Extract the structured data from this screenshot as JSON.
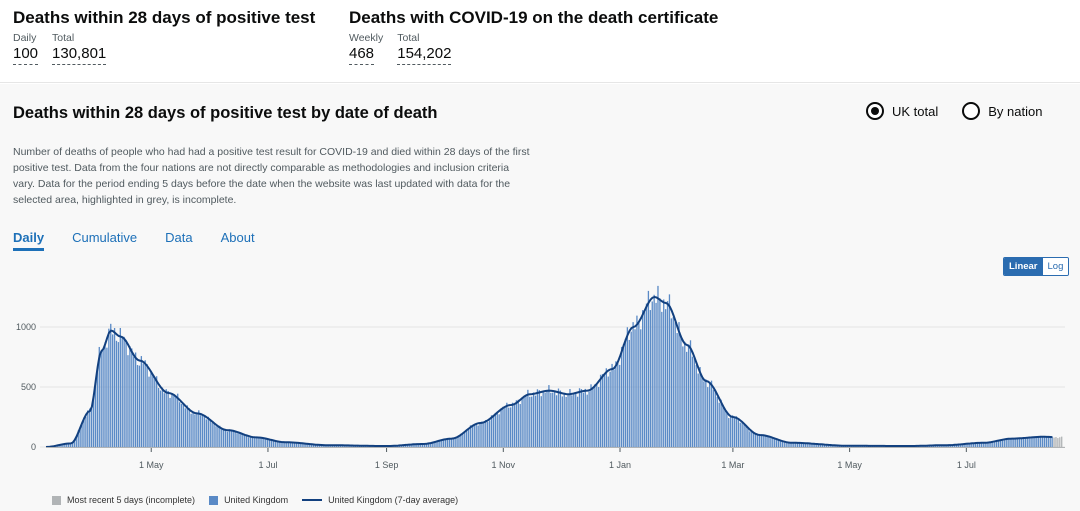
{
  "summary": {
    "block1": {
      "title": "Deaths within 28 days of positive test",
      "metrics": [
        {
          "label": "Daily",
          "value": "100"
        },
        {
          "label": "Total",
          "value": "130,801"
        }
      ]
    },
    "block2": {
      "title": "Deaths with COVID-19 on the death certificate",
      "metrics": [
        {
          "label": "Weekly",
          "value": "468"
        },
        {
          "label": "Total",
          "value": "154,202"
        }
      ]
    }
  },
  "card": {
    "title": "Deaths within 28 days of positive test by date of death",
    "radios": [
      {
        "label": "UK total",
        "selected": true
      },
      {
        "label": "By nation",
        "selected": false
      }
    ],
    "description": "Number of deaths of people who had had a positive test result for COVID-19 and died within 28 days of the first positive test. Data from the four nations are not directly comparable as methodologies and inclusion criteria vary. Data for the period ending 5 days before the date when the website was last updated with data for the selected area, highlighted in grey, is incomplete.",
    "tabs": [
      {
        "label": "Daily",
        "active": true
      },
      {
        "label": "Cumulative",
        "active": false
      },
      {
        "label": "Data",
        "active": false
      },
      {
        "label": "About",
        "active": false
      }
    ],
    "scale": {
      "linear": "Linear",
      "log": "Log",
      "selected": "Linear"
    }
  },
  "chart_data": {
    "type": "bar",
    "title": "",
    "xlabel": "",
    "ylabel": "",
    "ylim": [
      0,
      1400
    ],
    "y_ticks": [
      0,
      500,
      1000
    ],
    "x_ticks": [
      "1 May",
      "1 Jul",
      "1 Sep",
      "1 Nov",
      "1 Jan",
      "1 Mar",
      "1 May",
      "1 Jul"
    ],
    "grid": true,
    "legend_position": "bottom-left",
    "colors": {
      "bars": "#5a8ac6",
      "incomplete": "#b1b4b6",
      "line": "#12407f"
    },
    "series": [
      {
        "name": "Most recent 5 days (incomplete)",
        "kind": "bar-incomplete"
      },
      {
        "name": "United Kingdom",
        "kind": "bar"
      },
      {
        "name": "United Kingdom (7-day average)",
        "kind": "line"
      }
    ],
    "anchors": [
      {
        "date": "2020-03-07",
        "value": 0
      },
      {
        "date": "2020-03-20",
        "value": 30
      },
      {
        "date": "2020-03-30",
        "value": 300
      },
      {
        "date": "2020-04-05",
        "value": 800
      },
      {
        "date": "2020-04-10",
        "value": 970
      },
      {
        "date": "2020-04-15",
        "value": 920
      },
      {
        "date": "2020-04-25",
        "value": 720
      },
      {
        "date": "2020-05-10",
        "value": 450
      },
      {
        "date": "2020-05-25",
        "value": 280
      },
      {
        "date": "2020-06-10",
        "value": 140
      },
      {
        "date": "2020-06-25",
        "value": 80
      },
      {
        "date": "2020-07-10",
        "value": 40
      },
      {
        "date": "2020-08-01",
        "value": 15
      },
      {
        "date": "2020-09-01",
        "value": 8
      },
      {
        "date": "2020-09-20",
        "value": 25
      },
      {
        "date": "2020-10-05",
        "value": 70
      },
      {
        "date": "2020-10-20",
        "value": 200
      },
      {
        "date": "2020-11-05",
        "value": 350
      },
      {
        "date": "2020-11-15",
        "value": 440
      },
      {
        "date": "2020-11-25",
        "value": 470
      },
      {
        "date": "2020-12-05",
        "value": 440
      },
      {
        "date": "2020-12-15",
        "value": 470
      },
      {
        "date": "2020-12-28",
        "value": 650
      },
      {
        "date": "2021-01-08",
        "value": 1000
      },
      {
        "date": "2021-01-19",
        "value": 1250
      },
      {
        "date": "2021-01-25",
        "value": 1200
      },
      {
        "date": "2021-02-05",
        "value": 850
      },
      {
        "date": "2021-02-15",
        "value": 550
      },
      {
        "date": "2021-03-01",
        "value": 250
      },
      {
        "date": "2021-03-15",
        "value": 100
      },
      {
        "date": "2021-04-01",
        "value": 35
      },
      {
        "date": "2021-05-01",
        "value": 10
      },
      {
        "date": "2021-06-01",
        "value": 8
      },
      {
        "date": "2021-06-20",
        "value": 15
      },
      {
        "date": "2021-07-10",
        "value": 35
      },
      {
        "date": "2021-07-25",
        "value": 70
      },
      {
        "date": "2021-08-10",
        "value": 85
      },
      {
        "date": "2021-08-20",
        "value": 80
      }
    ],
    "incomplete_from": "2021-08-16"
  }
}
